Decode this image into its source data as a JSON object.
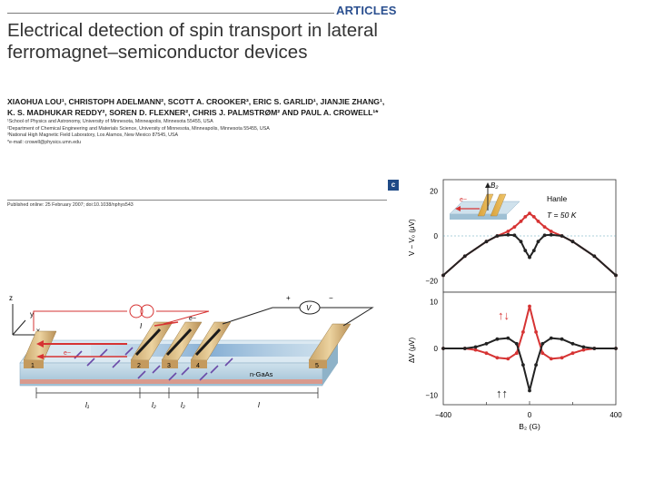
{
  "header": {
    "section": "ARTICLES",
    "title": "Electrical detection of spin transport in lateral ferromagnet–semiconductor devices",
    "authors_line1": "XIAOHUA LOU¹, CHRISTOPH ADELMANN², SCOTT A. CROOKER³, ERIC S. GARLID¹, JIANJIE ZHANG¹,",
    "authors_line2": "K. S. MADHUKAR REDDY², SOREN D. FLEXNER², CHRIS J. PALMSTRØM² AND PAUL A. CROWELL¹*",
    "affiliations": [
      "¹School of Physics and Astronomy, University of Minnesota, Minneapolis, Minnesota 55455, USA",
      "²Department of Chemical Engineering and Materials Science, University of Minnesota, Minneapolis, Minnesota 55455, USA",
      "³National High Magnetic Field Laboratory, Los Alamos, New Mexico 87545, USA",
      "*e-mail: crowell@physics.umn.edu"
    ],
    "published": "Published online: 25 February 2007; doi:10.1038/nphys543"
  },
  "figure_a": {
    "contacts": [
      "1",
      "2",
      "3",
      "4",
      "5"
    ],
    "substrate_label": "n-GaAs",
    "axis_z": "z",
    "axis_y": "y",
    "axis_x": "x",
    "current_label": "I",
    "electron_top": "e−",
    "electron_left": "e−",
    "voltmeter": "V",
    "plus": "+",
    "minus": "−",
    "lengths": [
      "l₁",
      "l₂",
      "l₂",
      "l"
    ]
  },
  "figure_c": {
    "panel_label": "c",
    "inset_field": "B₂",
    "inset_electron": "e−",
    "hanle": "Hanle",
    "temperature": "T = 50 K",
    "top_ylabel": "V − V₀ (μV)",
    "bottom_ylabel": "ΔV (μV)",
    "xlabel": "B₂ (G)",
    "top_ticks": [
      "20",
      "0",
      "−20"
    ],
    "bottom_ticks": [
      "10",
      "0",
      "−10"
    ],
    "x_ticks": [
      "−400",
      "0",
      "400"
    ],
    "arrows_antiparallel": "↑↓",
    "arrows_parallel": "↑↑"
  },
  "chart_data": {
    "type": "line",
    "xlabel": "B₂ (G)",
    "xlim": [
      -400,
      400
    ],
    "panels": [
      {
        "ylabel": "V − V₀ (μV)",
        "ylim": [
          -25,
          25
        ],
        "x": [
          -400,
          -300,
          -200,
          -150,
          -100,
          -70,
          -40,
          -20,
          0,
          20,
          40,
          70,
          100,
          150,
          200,
          300,
          400
        ],
        "series": [
          {
            "color": "#d63333",
            "values": [
              -17.5,
              -9,
              -2.5,
              0,
              2,
              4,
              6.5,
              8.5,
              10,
              8.5,
              6.5,
              4,
              2,
              0,
              -2.5,
              -9,
              -17.5
            ]
          },
          {
            "color": "#222222",
            "values": [
              -17.5,
              -9,
              -2.5,
              0,
              0.5,
              0.3,
              -2.5,
              -6.5,
              -9.5,
              -6.5,
              -2.5,
              0.3,
              0.5,
              0,
              -2.5,
              -9,
              -17.5
            ]
          }
        ]
      },
      {
        "ylabel": "ΔV (μV)",
        "ylim": [
          -12,
          12
        ],
        "x": [
          -400,
          -300,
          -250,
          -200,
          -150,
          -100,
          -60,
          -30,
          0,
          30,
          60,
          100,
          150,
          200,
          250,
          300,
          400
        ],
        "series": [
          {
            "color": "#d63333",
            "values": [
              0,
              0,
              -0.3,
              -1,
              -2,
              -2.2,
              -1,
              3.5,
              9,
              3.5,
              -1,
              -2.2,
              -2,
              -1,
              -0.3,
              0,
              0
            ]
          },
          {
            "color": "#222222",
            "values": [
              0,
              0,
              0.3,
              1,
              2,
              2.2,
              1,
              -3.5,
              -9,
              -3.5,
              1,
              2.2,
              2,
              1,
              0.3,
              0,
              0
            ]
          }
        ]
      }
    ]
  }
}
